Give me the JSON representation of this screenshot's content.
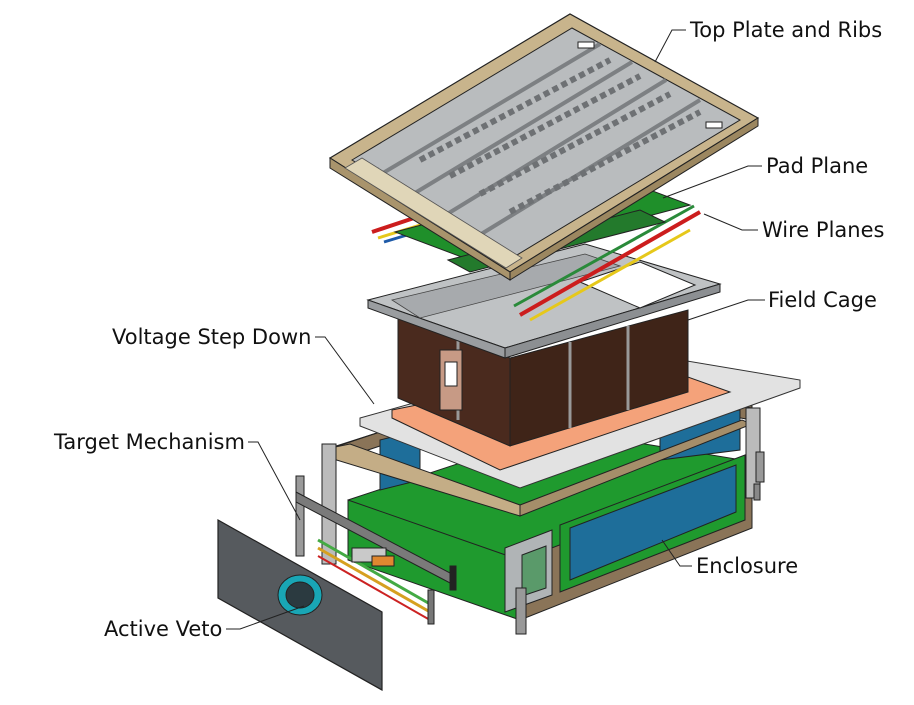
{
  "labels": {
    "top_plate": "Top Plate and Ribs",
    "pad_plane": "Pad Plane",
    "wire_planes": "Wire Planes",
    "field_cage": "Field Cage",
    "voltage_step_down": "Voltage Step Down",
    "target_mechanism": "Target Mechanism",
    "enclosure": "Enclosure",
    "active_veto": "Active Veto"
  },
  "colors": {
    "frame_tan": "#c8b48c",
    "plate_gray": "#b9bcbe",
    "pad_green": "#1f8f2a",
    "field_cage_brown": "#4a2a1e",
    "copper": "#f0a07a",
    "enclosure_blue": "#1e6e9a",
    "enclosure_green": "#1f9a2e",
    "veto_gray": "#565a5e",
    "veto_ring": "#19a6b5"
  }
}
